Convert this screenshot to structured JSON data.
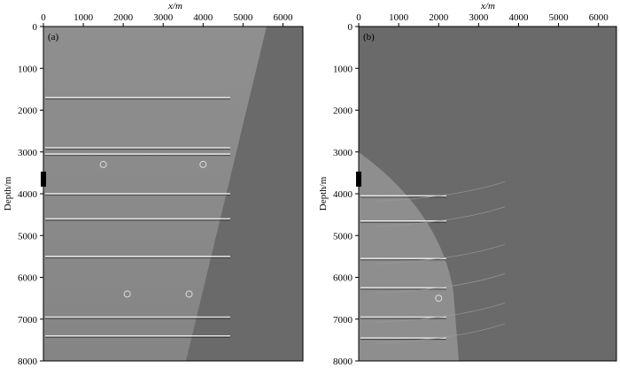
{
  "figure": {
    "panels": [
      {
        "id": "a",
        "label": "(a)",
        "x_title": "x/m",
        "y_title": "Depth/m",
        "x_ticks": [
          "0",
          "1000",
          "2000",
          "3000",
          "4000",
          "5000",
          "6000"
        ],
        "y_ticks": [
          "0",
          "1000",
          "2000",
          "3000",
          "4000",
          "5000",
          "6000",
          "7000",
          "8000"
        ]
      },
      {
        "id": "b",
        "label": "(b)",
        "x_title": "x/m",
        "y_title": "Depth/m",
        "x_ticks": [
          "0",
          "1000",
          "2000",
          "3000",
          "4000",
          "5000",
          "6000"
        ],
        "y_ticks": [
          "0",
          "1000",
          "2000",
          "3000",
          "4000",
          "5000",
          "6000",
          "7000",
          "8000"
        ]
      }
    ]
  },
  "colors": {
    "background_gray": "#6a6a6a",
    "illuminated_gray": "#8e8e8e",
    "reflector_bright": "#f2f2f2",
    "reflector_dark": "#2a2a2a",
    "source_marker": "#000000"
  },
  "chart_data": [
    {
      "type": "heatmap",
      "panel": "a",
      "xlabel": "x/m",
      "ylabel": "Depth/m",
      "xlim": [
        0,
        6500
      ],
      "ylim": [
        8000,
        0
      ],
      "source_marker_depth": [
        3500,
        3850
      ],
      "reflector_depths": [
        1700,
        2900,
        3050,
        4000,
        4600,
        5500,
        6950,
        7400
      ],
      "scatterers": [
        [
          1500,
          3300
        ],
        [
          4000,
          3300
        ],
        [
          2100,
          6400
        ],
        [
          3650,
          6400
        ]
      ]
    },
    {
      "type": "heatmap",
      "panel": "b",
      "xlabel": "x/m",
      "ylabel": "Depth/m",
      "xlim": [
        0,
        6500
      ],
      "ylim": [
        8000,
        0
      ],
      "source_marker_depth": [
        3500,
        3850
      ],
      "reflector_depths": [
        4050,
        4650,
        5550,
        6250,
        6950,
        7450
      ],
      "scatterers": [
        [
          2000,
          6500
        ]
      ]
    }
  ]
}
